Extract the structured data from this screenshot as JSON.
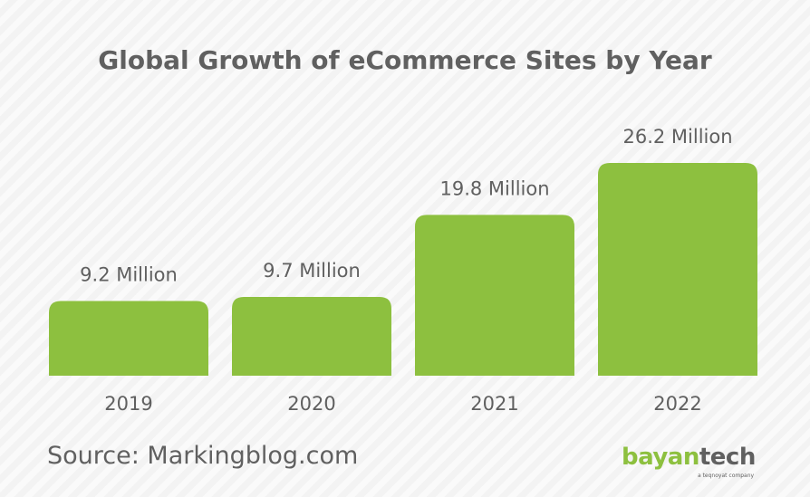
{
  "title": "Global Growth of eCommerce Sites by Year",
  "chart_data": {
    "type": "bar",
    "title": "Global Growth of eCommerce Sites by Year",
    "categories": [
      "2019",
      "2020",
      "2021",
      "2022"
    ],
    "values": [
      9.2,
      9.7,
      19.8,
      26.2
    ],
    "value_labels": [
      "9.2 Million",
      "9.7 Million",
      "19.8 Million",
      "26.2 Million"
    ],
    "unit": "Million",
    "xlabel": "",
    "ylabel": "",
    "ylim": [
      0,
      26.2
    ],
    "grid": false,
    "legend": "none",
    "bar_color": "#8dc03f"
  },
  "source": "Source: Markingblog.com",
  "logo": {
    "part1": "bayan",
    "part2": "tech",
    "tagline": "a teqnoyat company"
  },
  "colors": {
    "bar": "#8dc03f",
    "text": "#606060",
    "background": "#f3f3f3"
  }
}
